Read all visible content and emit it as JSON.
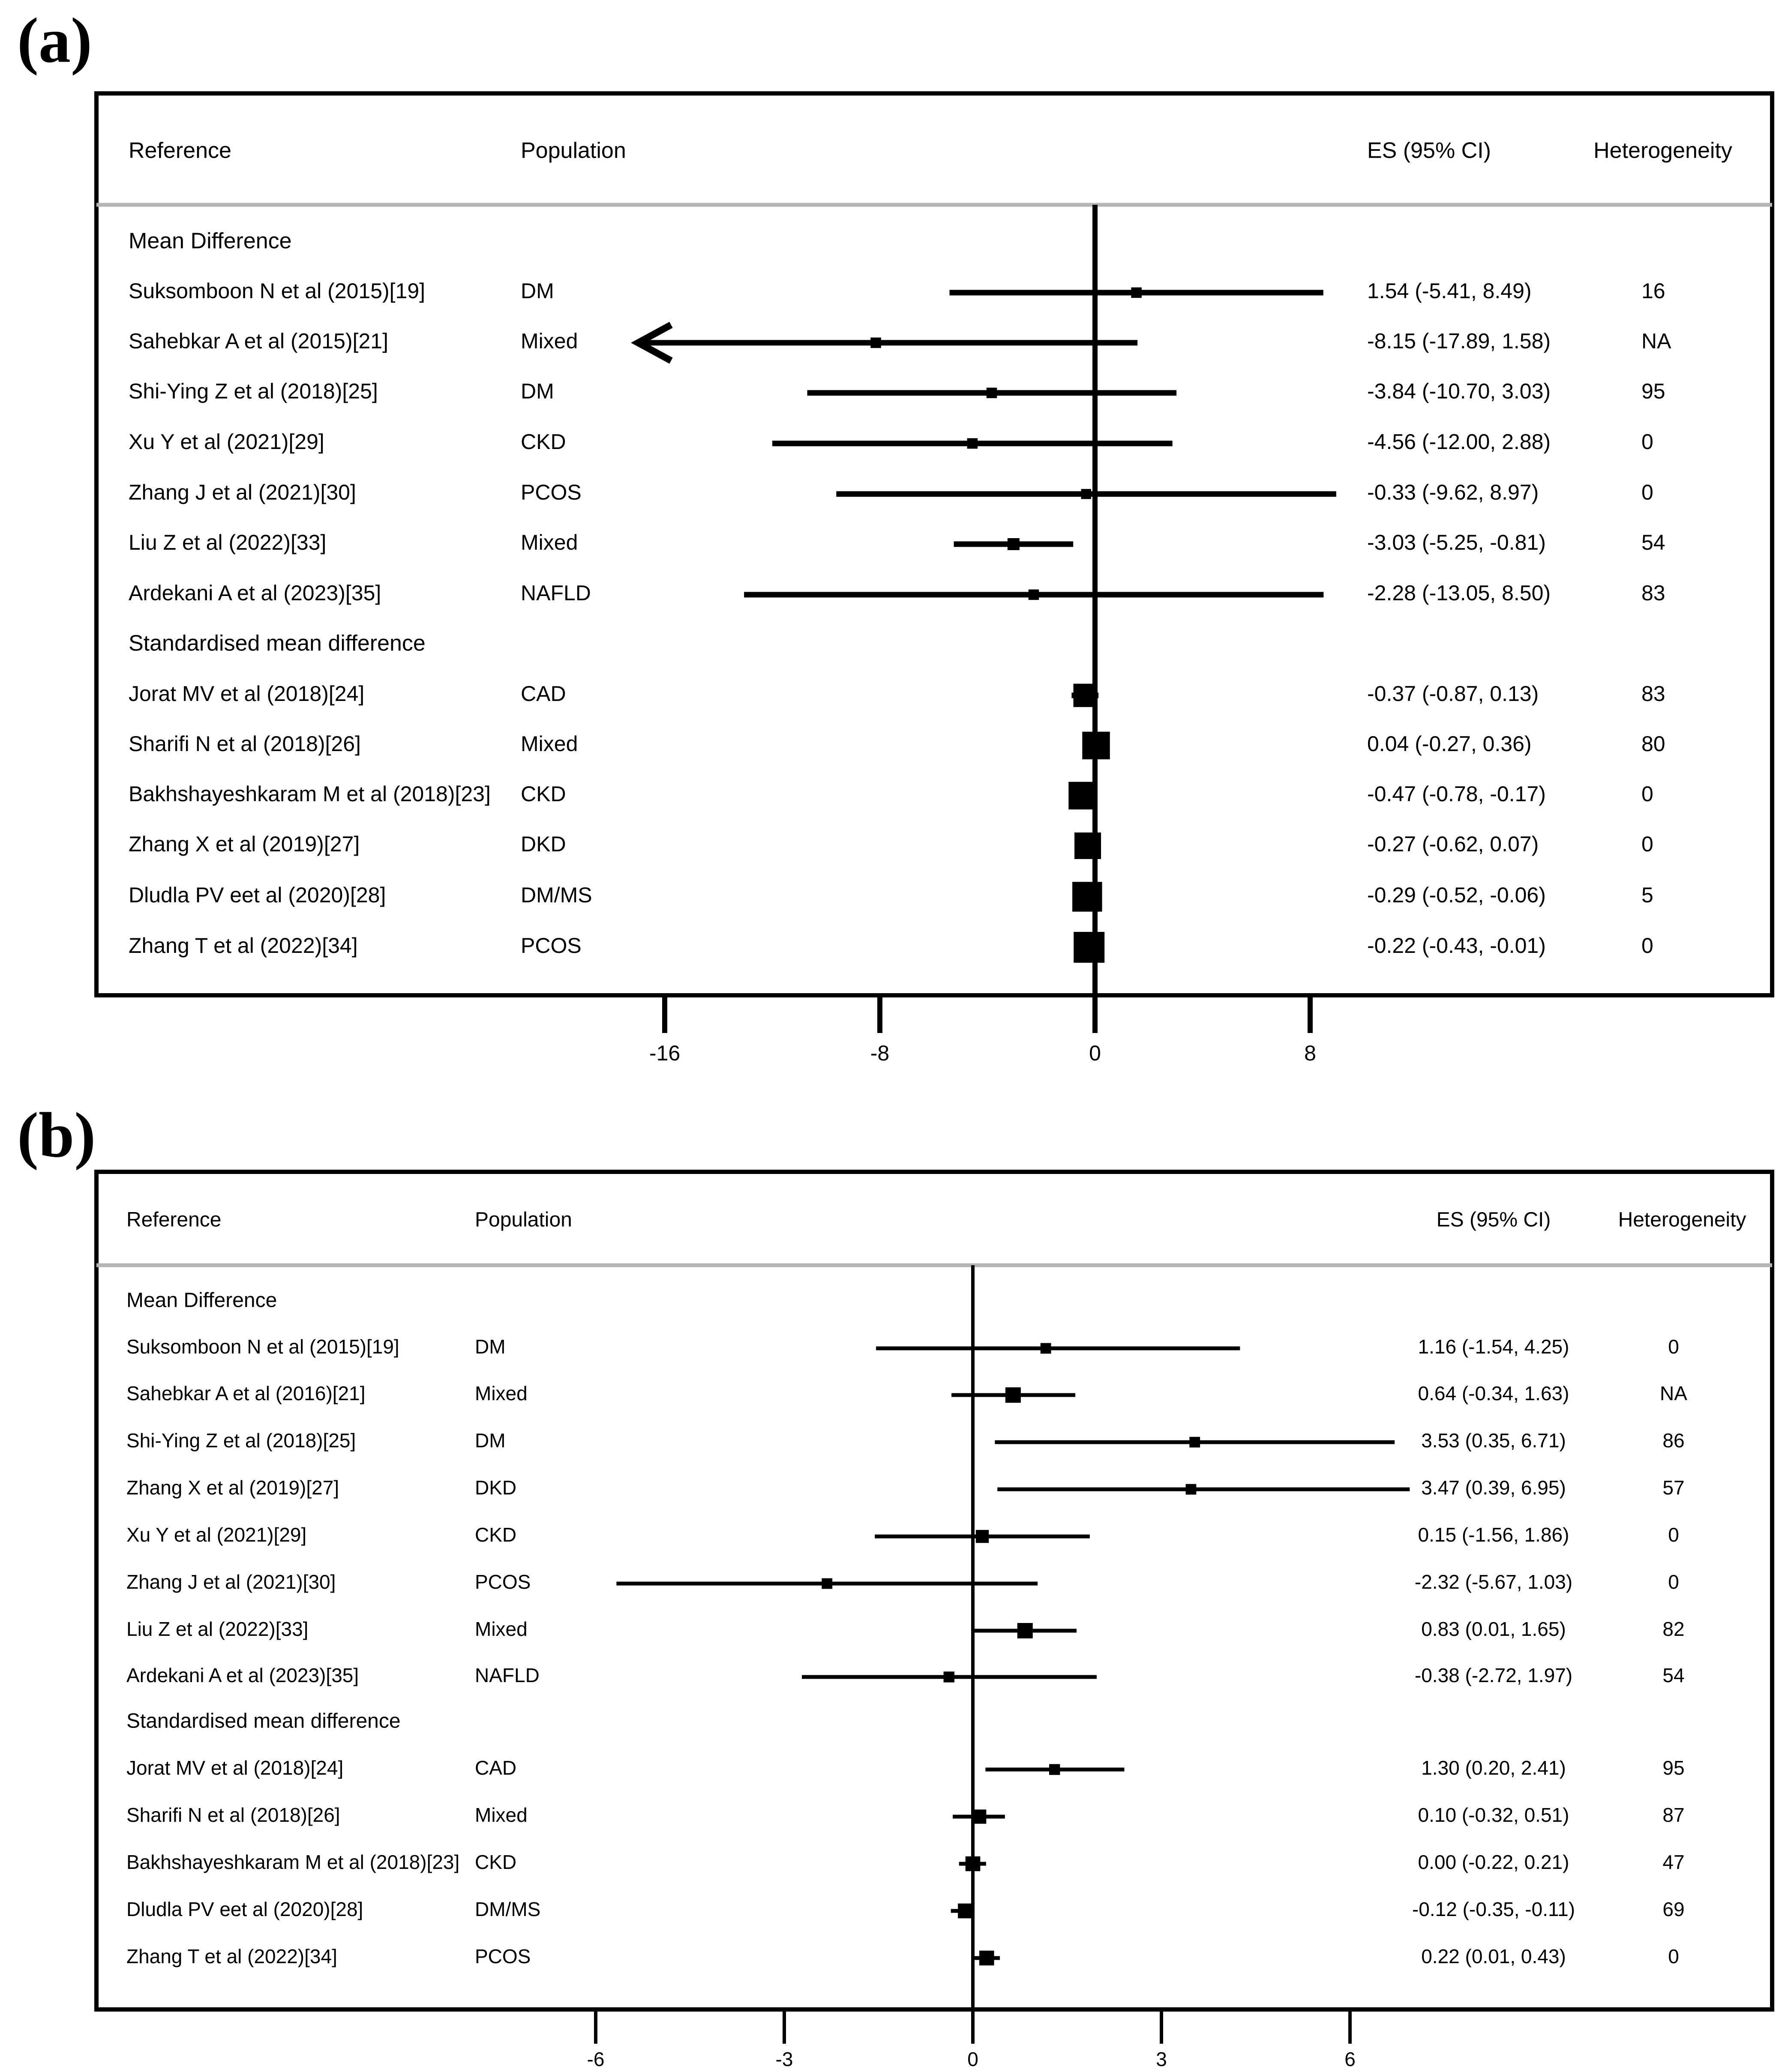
{
  "figure": {
    "panels": [
      {
        "label": "(a)",
        "headers": {
          "reference": "Reference",
          "population": "Population",
          "es": "ES (95% CI)",
          "heterogeneity": "Heterogeneity"
        },
        "tick_labels": [
          "-16",
          "-8",
          "0",
          "8"
        ]
      },
      {
        "label": "(b)",
        "headers": {
          "reference": "Reference",
          "population": "Population",
          "es": "ES (95% CI)",
          "heterogeneity": "Heterogeneity"
        },
        "tick_labels": [
          "-6",
          "-3",
          "0",
          "3",
          "6"
        ]
      }
    ]
  },
  "chart_data": [
    {
      "type": "forest",
      "label": "(a)",
      "x_ticks": [
        -16,
        -8,
        0,
        8
      ],
      "xlim": [
        -17.89,
        8.97
      ],
      "reference_line": 0,
      "groups": [
        {
          "title": "Mean Difference",
          "rows": [
            {
              "reference": "Suksomboon N et al (2015)[19]",
              "population": "DM",
              "es": 1.54,
              "lo": -5.41,
              "hi": 8.49,
              "es_text": "1.54 (-5.41, 8.49)",
              "het": "16",
              "weight": 0.05
            },
            {
              "reference": "Sahebkar A et al (2015)[21]",
              "population": "Mixed",
              "es": -8.15,
              "lo": -17.89,
              "hi": 1.58,
              "es_text": "-8.15 (-17.89, 1.58)",
              "het": "NA",
              "weight": 0.05,
              "arrow_left": true
            },
            {
              "reference": "Shi-Ying Z et al (2018)[25]",
              "population": "DM",
              "es": -3.84,
              "lo": -10.7,
              "hi": 3.03,
              "es_text": "-3.84 (-10.70, 3.03)",
              "het": "95",
              "weight": 0.05
            },
            {
              "reference": "Xu Y et al (2021)[29]",
              "population": "CKD",
              "es": -4.56,
              "lo": -12.0,
              "hi": 2.88,
              "es_text": "-4.56 (-12.00, 2.88)",
              "het": "0",
              "weight": 0.05
            },
            {
              "reference": "Zhang J et al (2021)[30]",
              "population": "PCOS",
              "es": -0.33,
              "lo": -9.62,
              "hi": 8.97,
              "es_text": "-0.33 (-9.62, 8.97)",
              "het": "0",
              "weight": 0.03
            },
            {
              "reference": "Liu Z et al (2022)[33]",
              "population": "Mixed",
              "es": -3.03,
              "lo": -5.25,
              "hi": -0.81,
              "es_text": "-3.03 (-5.25, -0.81)",
              "het": "54",
              "weight": 0.12
            },
            {
              "reference": "Ardekani A et al (2023)[35]",
              "population": "NAFLD",
              "es": -2.28,
              "lo": -13.05,
              "hi": 8.5,
              "es_text": "-2.28 (-13.05, 8.50)",
              "het": "83",
              "weight": 0.05
            }
          ]
        },
        {
          "title": "Standardised mean difference",
          "rows": [
            {
              "reference": "Jorat MV et al (2018)[24]",
              "population": "CAD",
              "es": -0.37,
              "lo": -0.87,
              "hi": 0.13,
              "es_text": "-0.37 (-0.87, 0.13)",
              "het": "83",
              "weight": 0.65
            },
            {
              "reference": "Sharifi N et al (2018)[26]",
              "population": "Mixed",
              "es": 0.04,
              "lo": -0.27,
              "hi": 0.36,
              "es_text": "0.04 (-0.27, 0.36)",
              "het": "80",
              "weight": 0.85
            },
            {
              "reference": "Bakhshayeshkaram M et al (2018)[23]",
              "population": "CKD",
              "es": -0.47,
              "lo": -0.78,
              "hi": -0.17,
              "es_text": "-0.47 (-0.78, -0.17)",
              "het": "0",
              "weight": 0.85
            },
            {
              "reference": "Zhang X et al (2019)[27]",
              "population": "DKD",
              "es": -0.27,
              "lo": -0.62,
              "hi": 0.07,
              "es_text": "-0.27 (-0.62, 0.07)",
              "het": "0",
              "weight": 0.8
            },
            {
              "reference": "Dludla PV eet al (2020)[28]",
              "population": "DM/MS",
              "es": -0.29,
              "lo": -0.52,
              "hi": -0.06,
              "es_text": "-0.29 (-0.52, -0.06)",
              "het": "5",
              "weight": 0.95
            },
            {
              "reference": "Zhang T et al (2022)[34]",
              "population": "PCOS",
              "es": -0.22,
              "lo": -0.43,
              "hi": -0.01,
              "es_text": "-0.22 (-0.43, -0.01)",
              "het": "0",
              "weight": 1.0
            }
          ]
        }
      ]
    },
    {
      "type": "forest",
      "label": "(b)",
      "x_ticks": [
        -6,
        -3,
        0,
        3,
        6
      ],
      "xlim": [
        -5.67,
        6.95
      ],
      "reference_line": 0,
      "groups": [
        {
          "title": "Mean Difference",
          "rows": [
            {
              "reference": "Suksomboon N et al (2015)[19]",
              "population": "DM",
              "es": 1.16,
              "lo": -1.54,
              "hi": 4.25,
              "es_text": "1.16 (-1.54, 4.25)",
              "het": "0",
              "weight": 0.1
            },
            {
              "reference": "Sahebkar A et al (2016)[21]",
              "population": "Mixed",
              "es": 0.64,
              "lo": -0.34,
              "hi": 1.63,
              "es_text": "0.64 (-0.34, 1.63)",
              "het": "NA",
              "weight": 0.5
            },
            {
              "reference": "Shi-Ying Z et al (2018)[25]",
              "population": "DM",
              "es": 3.53,
              "lo": 0.35,
              "hi": 6.71,
              "es_text": "3.53 (0.35, 6.71)",
              "het": "86",
              "weight": 0.1
            },
            {
              "reference": "Zhang X et al (2019)[27]",
              "population": "DKD",
              "es": 3.47,
              "lo": 0.39,
              "hi": 6.95,
              "es_text": "3.47 (0.39, 6.95)",
              "het": "57",
              "weight": 0.1
            },
            {
              "reference": "Xu Y et al (2021)[29]",
              "population": "CKD",
              "es": 0.15,
              "lo": -1.56,
              "hi": 1.86,
              "es_text": "0.15 (-1.56, 1.86)",
              "het": "0",
              "weight": 0.3
            },
            {
              "reference": "Zhang J et al (2021)[30]",
              "population": "PCOS",
              "es": -2.32,
              "lo": -5.67,
              "hi": 1.03,
              "es_text": "-2.32 (-5.67, 1.03)",
              "het": "0",
              "weight": 0.1
            },
            {
              "reference": "Liu Z et al (2022)[33]",
              "population": "Mixed",
              "es": 0.83,
              "lo": 0.01,
              "hi": 1.65,
              "es_text": "0.83 (0.01, 1.65)",
              "het": "82",
              "weight": 0.5
            },
            {
              "reference": "Ardekani A et al (2023)[35]",
              "population": "NAFLD",
              "es": -0.38,
              "lo": -2.72,
              "hi": 1.97,
              "es_text": "-0.38 (-2.72, 1.97)",
              "het": "54",
              "weight": 0.12
            }
          ]
        },
        {
          "title": "Standardised mean difference",
          "rows": [
            {
              "reference": "Jorat MV et al (2018)[24]",
              "population": "CAD",
              "es": 1.3,
              "lo": 0.2,
              "hi": 2.41,
              "es_text": "1.30 (0.20, 2.41)",
              "het": "95",
              "weight": 0.12
            },
            {
              "reference": "Sharifi N et al (2018)[26]",
              "population": "Mixed",
              "es": 0.1,
              "lo": -0.32,
              "hi": 0.51,
              "es_text": "0.10 (-0.32, 0.51)",
              "het": "87",
              "weight": 0.4
            },
            {
              "reference": "Bakhshayeshkaram M et al (2018)[23]",
              "population": "CKD",
              "es": 0.0,
              "lo": -0.22,
              "hi": 0.21,
              "es_text": "0.00 (-0.22, 0.21)",
              "het": "47",
              "weight": 0.45
            },
            {
              "reference": "Dludla PV eet al (2020)[28]",
              "population": "DM/MS",
              "es": -0.12,
              "lo": -0.35,
              "hi": -0.11,
              "es_text": "-0.12 (-0.35, -0.11)",
              "het": "69",
              "weight": 0.45
            },
            {
              "reference": "Zhang T et al (2022)[34]",
              "population": "PCOS",
              "es": 0.22,
              "lo": 0.01,
              "hi": 0.43,
              "es_text": "0.22 (0.01, 0.43)",
              "het": "0",
              "weight": 0.45
            }
          ]
        }
      ]
    }
  ]
}
